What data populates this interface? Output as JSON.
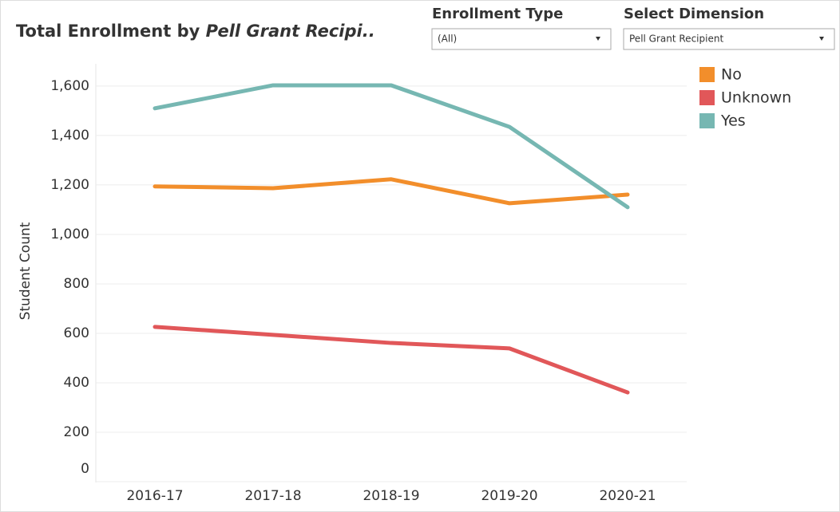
{
  "chart_data": {
    "type": "line",
    "title": "Total Enrollment by",
    "title_emphasis": "Pell Grant Recipi..",
    "filters": [
      {
        "label": "Enrollment Type",
        "value": "(All)"
      },
      {
        "label": "Select Dimension",
        "value": "Pell Grant Recipient"
      }
    ],
    "y_label": "Student Count",
    "categories": [
      "2016-17",
      "2017-18",
      "2018-19",
      "2019-20",
      "2020-21"
    ],
    "series": [
      {
        "name": "No",
        "color": "#f28e2b",
        "values": [
          1194,
          1187,
          1223,
          1126,
          1161
        ]
      },
      {
        "name": "Unknown",
        "color": "#e15759",
        "values": [
          626,
          594,
          561,
          539,
          361
        ]
      },
      {
        "name": "Yes",
        "color": "#76b7b2",
        "values": [
          1510,
          1603,
          1603,
          1435,
          1110
        ]
      }
    ],
    "ylim": [
      0,
      1690
    ],
    "yticks": [
      0,
      {
        "value": 200,
        "label": "200"
      },
      400,
      600,
      800,
      {
        "value": 1000,
        "label": "1,000"
      },
      {
        "value": 1200,
        "label": "1,200"
      },
      {
        "value": 1400,
        "label": "1,400"
      },
      {
        "value": 1600,
        "label": "1,600"
      }
    ],
    "grid": true
  }
}
